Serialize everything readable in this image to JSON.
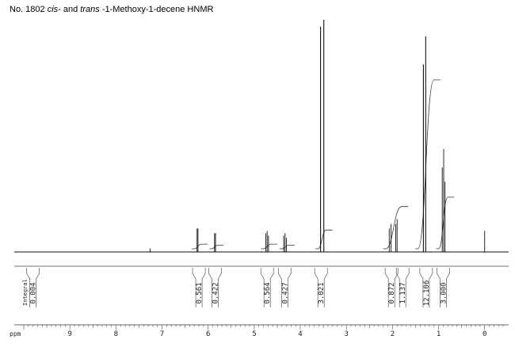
{
  "title": {
    "prefix": "No. 1802 ",
    "cis": "cis",
    "middle": "- and ",
    "trans": "trans",
    "suffix": "  -1-Methoxy-1-decene HNMR"
  },
  "chart_data": {
    "type": "line",
    "title": "No. 1802 cis- and trans -1-Methoxy-1-decene HNMR",
    "xlabel": "ppm",
    "integral_label": "Integral",
    "xlim": [
      10.0,
      -0.4
    ],
    "ticks": [
      {
        "value": 9,
        "label": "9"
      },
      {
        "value": 8,
        "label": "8"
      },
      {
        "value": 7,
        "label": "7"
      },
      {
        "value": 6,
        "label": "6"
      },
      {
        "value": 5,
        "label": "5"
      },
      {
        "value": 4,
        "label": "4"
      },
      {
        "value": 3,
        "label": "3"
      },
      {
        "value": 2,
        "label": "2"
      },
      {
        "value": 1,
        "label": "1"
      },
      {
        "value": 0,
        "label": "0"
      }
    ],
    "peaks": [
      {
        "ppm": 7.26,
        "height": 0.015
      },
      {
        "ppm": 6.24,
        "height": 0.1
      },
      {
        "ppm": 6.22,
        "height": 0.1
      },
      {
        "ppm": 5.86,
        "height": 0.08
      },
      {
        "ppm": 5.84,
        "height": 0.08
      },
      {
        "ppm": 4.75,
        "height": 0.08
      },
      {
        "ppm": 4.72,
        "height": 0.09
      },
      {
        "ppm": 4.69,
        "height": 0.07
      },
      {
        "ppm": 4.36,
        "height": 0.07
      },
      {
        "ppm": 4.33,
        "height": 0.08
      },
      {
        "ppm": 4.3,
        "height": 0.06
      },
      {
        "ppm": 3.56,
        "height": 0.96
      },
      {
        "ppm": 3.49,
        "height": 0.99
      },
      {
        "ppm": 2.07,
        "height": 0.1
      },
      {
        "ppm": 2.03,
        "height": 0.12
      },
      {
        "ppm": 1.93,
        "height": 0.12
      },
      {
        "ppm": 1.9,
        "height": 0.14
      },
      {
        "ppm": 1.33,
        "height": 0.8
      },
      {
        "ppm": 1.28,
        "height": 0.92
      },
      {
        "ppm": 0.92,
        "height": 0.36
      },
      {
        "ppm": 0.89,
        "height": 0.44
      },
      {
        "ppm": 0.86,
        "height": 0.3
      },
      {
        "ppm": 0.0,
        "height": 0.09
      }
    ],
    "integrals": [
      {
        "ppm": 9.8,
        "value": "0.004"
      },
      {
        "ppm": 6.2,
        "value": "0.561"
      },
      {
        "ppm": 5.85,
        "value": "0.422"
      },
      {
        "ppm": 4.72,
        "value": "0.564"
      },
      {
        "ppm": 4.34,
        "value": "0.427"
      },
      {
        "ppm": 3.55,
        "value": "3.021"
      },
      {
        "ppm": 2.02,
        "value": "0.872"
      },
      {
        "ppm": 1.78,
        "value": "1.137"
      },
      {
        "ppm": 1.27,
        "value": "12.106"
      },
      {
        "ppm": 0.9,
        "value": "3.000"
      }
    ],
    "integral_curves": [
      {
        "from": 6.3,
        "to": 6.15,
        "rise": 0.02
      },
      {
        "from": 5.92,
        "to": 5.8,
        "rise": 0.015
      },
      {
        "from": 4.8,
        "to": 4.64,
        "rise": 0.02
      },
      {
        "from": 4.4,
        "to": 4.26,
        "rise": 0.015
      },
      {
        "from": 3.62,
        "to": 3.44,
        "rise": 0.08
      },
      {
        "from": 2.15,
        "to": 1.8,
        "rise": 0.18
      },
      {
        "from": 1.45,
        "to": 1.1,
        "rise": 0.72
      },
      {
        "from": 1.0,
        "to": 0.8,
        "rise": 0.22
      }
    ]
  }
}
